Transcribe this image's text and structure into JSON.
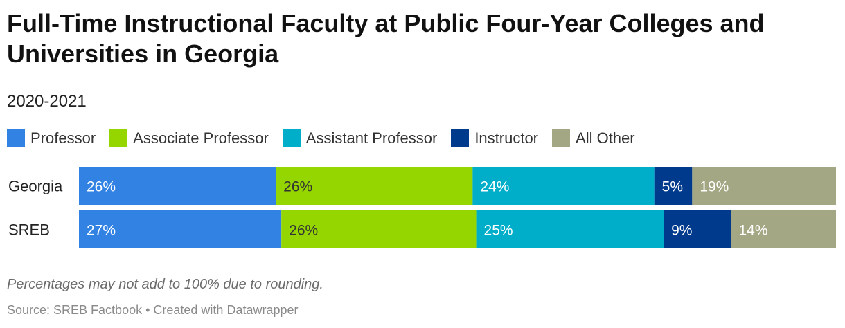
{
  "chart_data": {
    "type": "bar",
    "orientation": "horizontal",
    "stacked": true,
    "title": "Full-Time Instructional Faculty at Public Four-Year Colleges and Universities in Georgia",
    "subtitle": "2020-2021",
    "categories": [
      "Georgia",
      "SREB"
    ],
    "series": [
      {
        "name": "Professor",
        "color": "#3182e3",
        "label_color": "#ffffff",
        "values": [
          26,
          27
        ]
      },
      {
        "name": "Associate Professor",
        "color": "#95d600",
        "label_color": "#333333",
        "values": [
          26,
          26
        ]
      },
      {
        "name": "Assistant Professor",
        "color": "#00aec9",
        "label_color": "#ffffff",
        "values": [
          24,
          25
        ]
      },
      {
        "name": "Instructor",
        "color": "#003a8c",
        "label_color": "#ffffff",
        "values": [
          5,
          9
        ]
      },
      {
        "name": "All Other",
        "color": "#a3a783",
        "label_color": "#ffffff",
        "values": [
          19,
          14
        ]
      }
    ],
    "value_suffix": "%",
    "xlim": [
      0,
      100
    ],
    "legend_position": "top-left",
    "grid": false
  },
  "notes": "Percentages may not add to 100% due to rounding.",
  "source": "Source: SREB Factbook • Created with Datawrapper"
}
